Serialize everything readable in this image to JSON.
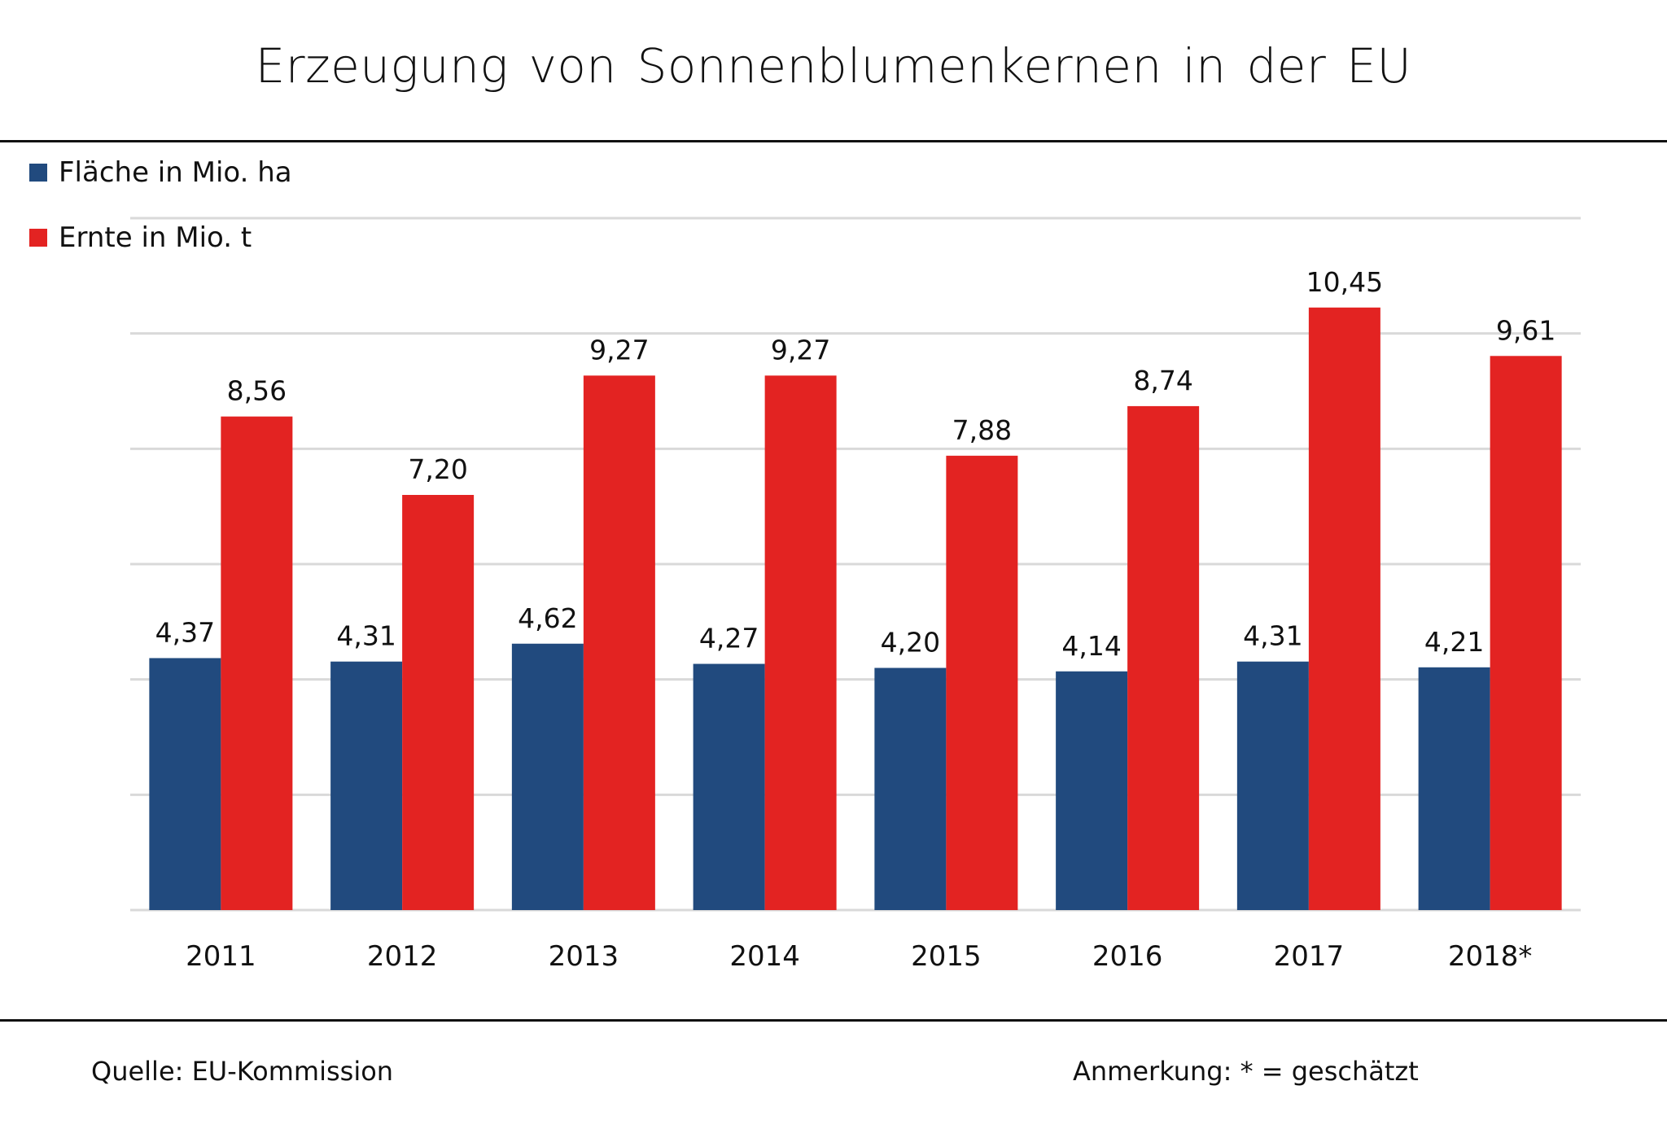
{
  "chart_data": {
    "type": "bar",
    "title": "Erzeugung von Sonnenblumenkernen  in der EU",
    "categories": [
      "2011",
      "2012",
      "2013",
      "2014",
      "2015",
      "2016",
      "2017",
      "2018*"
    ],
    "series": [
      {
        "name": "Fläche in Mio. ha",
        "color": "#214a7e",
        "values": [
          4.37,
          4.31,
          4.62,
          4.27,
          4.2,
          4.14,
          4.31,
          4.21
        ],
        "labels": [
          "4,37",
          "4,31",
          "4,62",
          "4,27",
          "4,20",
          "4,14",
          "4,31",
          "4,21"
        ]
      },
      {
        "name": "Ernte in Mio. t",
        "color": "#e32322",
        "values": [
          8.56,
          7.2,
          9.27,
          9.27,
          7.88,
          8.74,
          10.45,
          9.61
        ],
        "labels": [
          "8,56",
          "7,20",
          "9,27",
          "9,27",
          "7,88",
          "8,74",
          "10,45",
          "9,61"
        ]
      }
    ],
    "xlabel": "",
    "ylabel": "",
    "ylim": [
      0,
      12
    ],
    "y_gridlines": [
      0,
      2,
      4,
      6,
      8,
      10,
      12
    ],
    "y_tick_labels_shown": false,
    "grid": true,
    "legend_position": "top-left"
  },
  "footer": {
    "source": "Quelle:  EU-Kommission",
    "note": "Anmerkung: * = geschätzt"
  }
}
